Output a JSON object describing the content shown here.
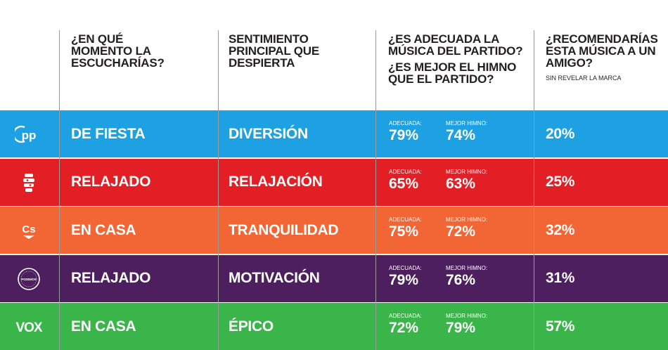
{
  "headers": {
    "col1": [
      "¿EN QUÉ",
      "MOMENTO LA",
      "ESCUCHARÍAS?"
    ],
    "col2": [
      "SENTIMIENTO",
      "PRINCIPAL QUE",
      "DESPIERTA"
    ],
    "col3a": [
      "¿ES ADECUADA LA",
      "MÚSICA DEL PARTIDO?"
    ],
    "col3b": [
      "¿ES MEJOR EL HIMNO",
      "QUE EL PARTIDO?"
    ],
    "col4": [
      "¿RECOMENDARÍAS",
      "ESTA MÚSICA A UN",
      "AMIGO?"
    ],
    "col4_note": "SIN REVELAR LA MARCA"
  },
  "rows": [
    {
      "party_logo": "pp",
      "logo_text": "pp",
      "color": "#1da1e2",
      "moment": "DE FIESTA",
      "feeling": "DIVERSIÓN",
      "adequate_label": "ADECUADA:",
      "adequate": "79%",
      "anthem_label": "MEJOR HIMNO:",
      "anthem": "74%",
      "recommend": "20%"
    },
    {
      "party_logo": "psoe",
      "logo_text": "",
      "color": "#e31f26",
      "moment": "RELAJADO",
      "feeling": "RELAJACIÓN",
      "adequate_label": "ADECUADA:",
      "adequate": "65%",
      "anthem_label": "MEJOR HIMNO:",
      "anthem": "63%",
      "recommend": "25%"
    },
    {
      "party_logo": "cs",
      "logo_text": "Cs",
      "color": "#f26635",
      "moment": "EN CASA",
      "feeling": "TRANQUILIDAD",
      "adequate_label": "ADECUADA:",
      "adequate": "75%",
      "anthem_label": "MEJOR HIMNO:",
      "anthem": "72%",
      "recommend": "32%"
    },
    {
      "party_logo": "podemos",
      "logo_text": "PODEMOS",
      "color": "#4d1f5f",
      "moment": "RELAJADO",
      "feeling": "MOTIVACIÓN",
      "adequate_label": "ADECUADA:",
      "adequate": "79%",
      "anthem_label": "MEJOR HIMNO:",
      "anthem": "76%",
      "recommend": "31%"
    },
    {
      "party_logo": "vox",
      "logo_text": "VOX",
      "color": "#3ab54a",
      "moment": "EN CASA",
      "feeling": "ÉPICO",
      "adequate_label": "ADECUADA:",
      "adequate": "72%",
      "anthem_label": "MEJOR HIMNO:",
      "anthem": "79%",
      "recommend": "57%"
    }
  ]
}
